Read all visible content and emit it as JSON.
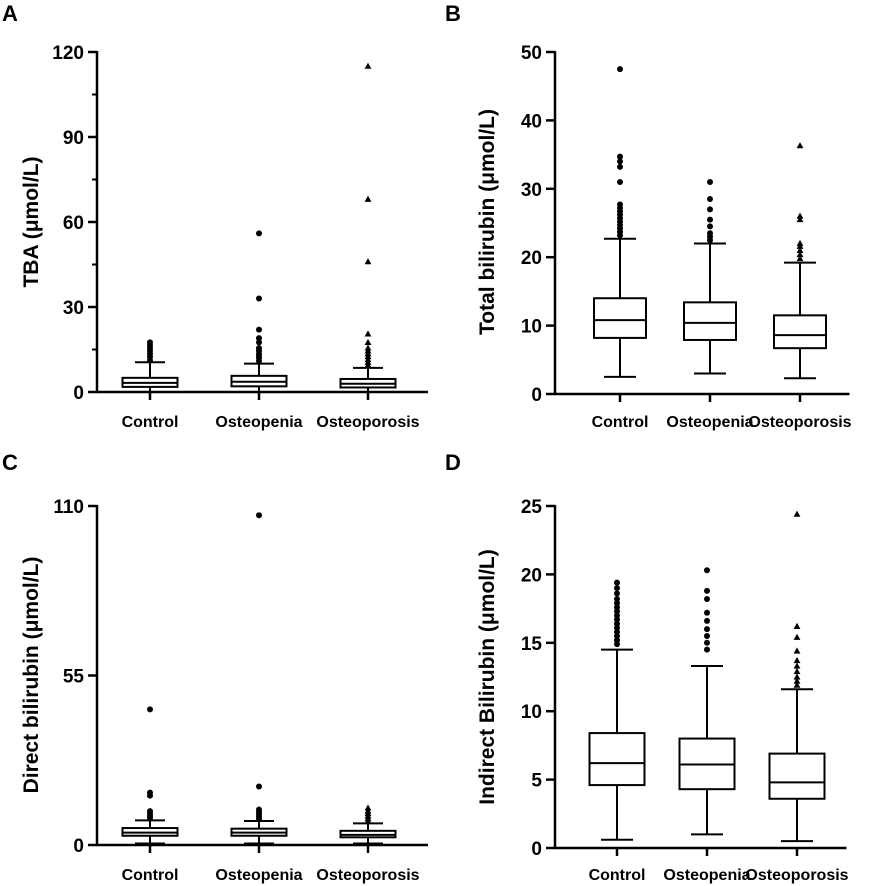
{
  "chart_data": [
    {
      "panel": "A",
      "type": "box",
      "ylabel": "TBA (μmol/L)",
      "categories": [
        "Control",
        "Osteopenia",
        "Osteoporosis"
      ],
      "ylim": [
        0,
        120
      ],
      "yticks": [
        0,
        30,
        60,
        90,
        120
      ],
      "yminor": [
        15,
        45,
        75,
        105
      ],
      "boxes": [
        {
          "category": "Control",
          "whisker_low": 0,
          "q1": 1.8,
          "median": 3.2,
          "q3": 5.0,
          "whisker_high": 10.5,
          "outlier_marker": "circle",
          "outliers": [
            11.2,
            12.5,
            13.5,
            14.5,
            15.5,
            16.5,
            17.5
          ]
        },
        {
          "category": "Osteopenia",
          "whisker_low": 0,
          "q1": 2.0,
          "median": 3.6,
          "q3": 5.7,
          "whisker_high": 10.0,
          "outlier_marker": "circle",
          "outliers": [
            11.0,
            12.0,
            12.8,
            13.5,
            14.5,
            15.5,
            17.5,
            19.0,
            22.0,
            33.0,
            56.0
          ]
        },
        {
          "category": "Osteoporosis",
          "whisker_low": 0,
          "q1": 1.6,
          "median": 2.9,
          "q3": 4.6,
          "whisker_high": 8.5,
          "outlier_marker": "triangle",
          "outliers": [
            9.5,
            10.5,
            11.5,
            12.5,
            13.5,
            14.5,
            15.5,
            17.5,
            20.5,
            46.0,
            68.0,
            115.0
          ]
        }
      ]
    },
    {
      "panel": "B",
      "type": "box",
      "ylabel": "Total bilirubin (μmol/L)",
      "categories": [
        "Control",
        "Osteopenia",
        "Osteoporosis"
      ],
      "ylim": [
        0,
        50
      ],
      "yticks": [
        0,
        10,
        20,
        30,
        40,
        50
      ],
      "yminor": [],
      "boxes": [
        {
          "category": "Control",
          "whisker_low": 2.5,
          "q1": 8.2,
          "median": 10.8,
          "q3": 14.0,
          "whisker_high": 22.7,
          "outlier_marker": "circle",
          "outliers": [
            23.2,
            23.7,
            24.2,
            24.7,
            25.2,
            25.7,
            26.2,
            26.7,
            27.2,
            27.7,
            31.0,
            33.2,
            34.0,
            34.7,
            47.5
          ]
        },
        {
          "category": "Osteopenia",
          "whisker_low": 3.0,
          "q1": 7.9,
          "median": 10.4,
          "q3": 13.4,
          "whisker_high": 22.0,
          "outlier_marker": "circle",
          "outliers": [
            22.5,
            23.0,
            23.5,
            24.5,
            25.5,
            27.0,
            28.5,
            31.0
          ]
        },
        {
          "category": "Osteoporosis",
          "whisker_low": 2.3,
          "q1": 6.7,
          "median": 8.6,
          "q3": 11.5,
          "whisker_high": 19.2,
          "outlier_marker": "triangle",
          "outliers": [
            19.8,
            20.4,
            21.0,
            21.6,
            22.0,
            25.5,
            26.0,
            36.3
          ]
        }
      ]
    },
    {
      "panel": "C",
      "type": "box",
      "ylabel": "Direct bilirubin (μmol/L)",
      "categories": [
        "Control",
        "Osteopenia",
        "Osteoporosis"
      ],
      "ylim": [
        0,
        110
      ],
      "yticks": [
        0,
        55,
        110
      ],
      "yminor": [],
      "boxes": [
        {
          "category": "Control",
          "whisker_low": 0.5,
          "q1": 3.0,
          "median": 4.0,
          "q3": 5.5,
          "whisker_high": 8.0,
          "outlier_marker": "circle",
          "outliers": [
            8.8,
            9.5,
            10.2,
            11.0,
            16.0,
            17.0,
            44.0
          ]
        },
        {
          "category": "Osteopenia",
          "whisker_low": 0.5,
          "q1": 3.0,
          "median": 4.0,
          "q3": 5.3,
          "whisker_high": 7.8,
          "outlier_marker": "circle",
          "outliers": [
            8.5,
            9.2,
            10.0,
            10.8,
            11.5,
            19.0,
            107.0
          ]
        },
        {
          "category": "Osteoporosis",
          "whisker_low": 0.5,
          "q1": 2.5,
          "median": 3.3,
          "q3": 4.6,
          "whisker_high": 7.0,
          "outlier_marker": "triangle",
          "outliers": [
            7.8,
            8.6,
            9.4,
            10.2,
            11.0,
            12.0
          ]
        }
      ]
    },
    {
      "panel": "D",
      "type": "box",
      "ylabel": "Indirect Bilirubin (μmol/L)",
      "categories": [
        "Control",
        "Osteopenia",
        "Osteoporosis"
      ],
      "ylim": [
        0,
        25
      ],
      "yticks": [
        0,
        5,
        10,
        15,
        20,
        25
      ],
      "yminor": [],
      "boxes": [
        {
          "category": "Control",
          "whisker_low": 0.6,
          "q1": 4.6,
          "median": 6.2,
          "q3": 8.4,
          "whisker_high": 14.5,
          "outlier_marker": "circle",
          "outliers": [
            14.9,
            15.2,
            15.5,
            15.8,
            16.1,
            16.4,
            16.7,
            17.0,
            17.3,
            17.6,
            17.9,
            18.2,
            18.6,
            19.0,
            19.4
          ]
        },
        {
          "category": "Osteopenia",
          "whisker_low": 1.0,
          "q1": 4.3,
          "median": 6.1,
          "q3": 8.0,
          "whisker_high": 13.3,
          "outlier_marker": "circle",
          "outliers": [
            14.5,
            15.0,
            15.5,
            16.0,
            16.6,
            17.2,
            18.2,
            18.8,
            20.3
          ]
        },
        {
          "category": "Osteoporosis",
          "whisker_low": 0.5,
          "q1": 3.6,
          "median": 4.8,
          "q3": 6.9,
          "whisker_high": 11.6,
          "outlier_marker": "triangle",
          "outliers": [
            11.9,
            12.2,
            12.5,
            12.9,
            13.3,
            13.7,
            14.4,
            15.4,
            16.2,
            24.4
          ]
        }
      ]
    }
  ]
}
